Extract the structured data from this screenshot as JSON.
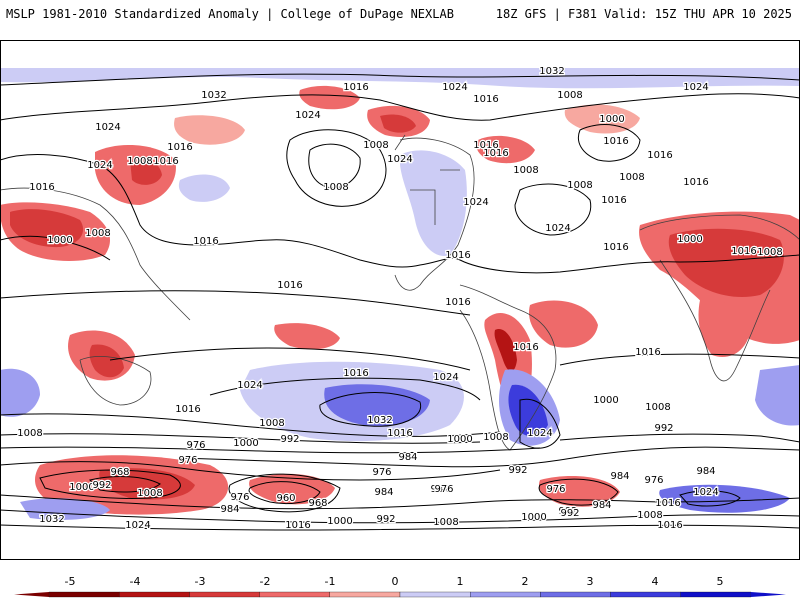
{
  "header": {
    "left": "MSLP 1981-2010 Standardized Anomaly | College of DuPage NEXLAB",
    "right": "18Z GFS | F381 Valid: 15Z THU APR 10 2025"
  },
  "colors": {
    "neg5": "#7a0000",
    "neg4": "#b41414",
    "neg3": "#d63a3a",
    "neg2": "#ee6a6a",
    "neg1": "#f7a8a0",
    "zero": "#ffffff",
    "pos1": "#ccccf5",
    "pos2": "#9e9ef0",
    "pos3": "#6e6ee6",
    "pos4": "#3c3cdc",
    "pos5": "#1010c8",
    "isobar": "#000000",
    "coast": "#404040"
  },
  "colorbar": {
    "ticks": [
      "-5",
      "-4",
      "-3",
      "-2",
      "-1",
      "0",
      "1",
      "2",
      "3",
      "4",
      "5"
    ]
  },
  "isobar_labels": [
    {
      "text": "1032"
    },
    {
      "text": "1016"
    },
    {
      "text": "1032"
    },
    {
      "text": "1024"
    },
    {
      "text": "1016"
    },
    {
      "text": "1024"
    },
    {
      "text": "1024"
    },
    {
      "text": "1008"
    },
    {
      "text": "1024"
    },
    {
      "text": "1008"
    },
    {
      "text": "1016"
    },
    {
      "text": "1024"
    },
    {
      "text": "1000"
    },
    {
      "text": "1016"
    },
    {
      "text": "1016"
    },
    {
      "text": "1008"
    },
    {
      "text": "1024"
    },
    {
      "text": "1016"
    },
    {
      "text": "1008"
    },
    {
      "text": "1016"
    },
    {
      "text": "1016"
    },
    {
      "text": "1024"
    },
    {
      "text": "1016"
    },
    {
      "text": "1008"
    },
    {
      "text": "1016"
    },
    {
      "text": "1008"
    },
    {
      "text": "1008"
    },
    {
      "text": "1016"
    },
    {
      "text": "1000"
    },
    {
      "text": "1008"
    },
    {
      "text": "1016"
    },
    {
      "text": "1024"
    },
    {
      "text": "1016"
    },
    {
      "text": "1016"
    },
    {
      "text": "1000"
    },
    {
      "text": "1016"
    },
    {
      "text": "1016"
    },
    {
      "text": "1016"
    },
    {
      "text": "1008"
    },
    {
      "text": "1016"
    },
    {
      "text": "1016"
    },
    {
      "text": "1024"
    },
    {
      "text": "1016"
    },
    {
      "text": "1024"
    },
    {
      "text": "1032"
    },
    {
      "text": "1016"
    },
    {
      "text": "1024"
    },
    {
      "text": "1000"
    },
    {
      "text": "1008"
    },
    {
      "text": "1008"
    },
    {
      "text": "1008"
    },
    {
      "text": "1000"
    },
    {
      "text": "992"
    },
    {
      "text": "1008"
    },
    {
      "text": "992"
    },
    {
      "text": "1000"
    },
    {
      "text": "1016"
    },
    {
      "text": "992"
    },
    {
      "text": "984"
    },
    {
      "text": "984"
    },
    {
      "text": "976"
    },
    {
      "text": "968"
    },
    {
      "text": "976"
    },
    {
      "text": "1000"
    },
    {
      "text": "992"
    },
    {
      "text": "1008"
    },
    {
      "text": "976"
    },
    {
      "text": "984"
    },
    {
      "text": "960"
    },
    {
      "text": "968"
    },
    {
      "text": "976"
    },
    {
      "text": "984"
    },
    {
      "text": "976"
    },
    {
      "text": "992"
    },
    {
      "text": "976"
    },
    {
      "text": "984"
    },
    {
      "text": "976"
    },
    {
      "text": "984"
    },
    {
      "text": "992"
    },
    {
      "text": "1024"
    },
    {
      "text": "1032"
    },
    {
      "text": "1024"
    },
    {
      "text": "1016"
    },
    {
      "text": "1000"
    },
    {
      "text": "992"
    },
    {
      "text": "1008"
    },
    {
      "text": "1000"
    },
    {
      "text": "992"
    },
    {
      "text": "984"
    },
    {
      "text": "1008"
    },
    {
      "text": "1016"
    },
    {
      "text": "1016"
    }
  ]
}
